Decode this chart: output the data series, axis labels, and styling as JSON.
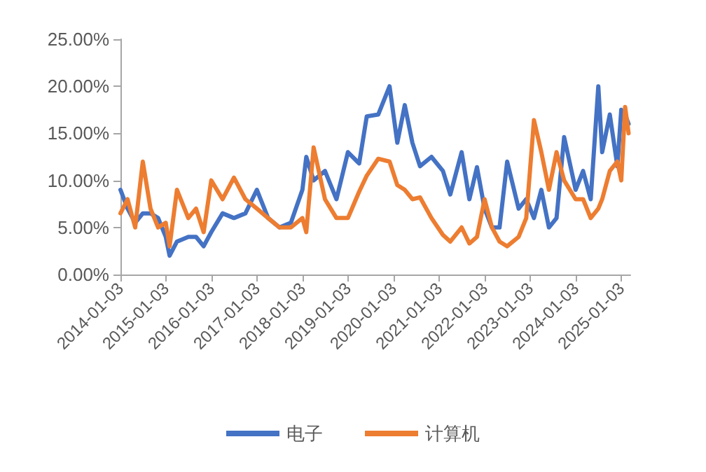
{
  "chart_data": {
    "type": "line",
    "x": [
      "2014-01-03",
      "2014-03",
      "2014-05",
      "2014-07",
      "2014-09",
      "2014-11",
      "2015-01",
      "2015-02",
      "2015-04",
      "2015-07",
      "2015-09",
      "2015-11",
      "2016-01",
      "2016-04",
      "2016-07",
      "2016-10",
      "2017-01",
      "2017-04",
      "2017-07",
      "2017-10",
      "2018-01",
      "2018-02",
      "2018-04",
      "2018-07",
      "2018-10",
      "2019-01",
      "2019-04",
      "2019-06",
      "2019-09",
      "2019-12",
      "2020-02",
      "2020-04",
      "2020-06",
      "2020-08",
      "2020-11",
      "2021-02",
      "2021-04",
      "2021-07",
      "2021-09",
      "2021-11",
      "2022-01",
      "2022-03",
      "2022-05",
      "2022-07",
      "2022-10",
      "2022-12",
      "2023-02",
      "2023-04",
      "2023-06",
      "2023-08",
      "2023-10",
      "2024-01",
      "2024-03",
      "2024-05",
      "2024-07",
      "2024-08",
      "2024-10",
      "2024-12",
      "2025-01",
      "2025-02",
      "2025-03"
    ],
    "series": [
      {
        "name": "电子",
        "color": "#4472c4",
        "values": [
          9,
          7,
          5.5,
          6.5,
          6.5,
          6,
          4,
          2,
          3.5,
          4,
          4,
          3,
          4.5,
          6.5,
          6,
          6.5,
          9,
          6,
          5,
          5.5,
          9,
          12.5,
          10,
          11,
          8,
          13,
          11.8,
          16.8,
          17,
          20,
          14,
          18,
          14,
          11.5,
          12.5,
          11,
          8.5,
          13,
          8,
          11.4,
          7,
          5,
          5,
          12,
          7,
          8,
          6,
          9,
          5,
          6,
          14.6,
          9,
          11,
          8,
          20,
          13,
          17,
          11.5,
          17.5,
          17,
          16
        ]
      },
      {
        "name": "计算机",
        "color": "#ed7d31",
        "values": [
          6.5,
          8,
          5,
          12,
          7,
          5,
          5.5,
          3,
          9,
          6,
          7,
          4.5,
          10,
          8,
          10.3,
          8,
          7,
          6,
          5,
          5,
          6,
          4.5,
          13.5,
          8,
          6,
          6,
          8.8,
          10.5,
          12.3,
          12,
          9.5,
          9,
          8,
          8.2,
          6,
          4.2,
          3.5,
          5,
          3.3,
          4,
          8,
          5,
          3.5,
          3,
          4,
          6,
          16.4,
          13,
          9,
          13,
          10,
          8,
          8,
          6,
          7,
          8,
          11,
          12,
          10,
          17.8,
          15
        ]
      }
    ],
    "xlim": [
      "2014-01-03",
      "2025-03-15"
    ],
    "xticks": [
      "2014-01-03",
      "2015-01-03",
      "2016-01-03",
      "2017-01-03",
      "2018-01-03",
      "2019-01-03",
      "2020-01-03",
      "2021-01-03",
      "2022-01-03",
      "2023-01-03",
      "2024-01-03",
      "2025-01-03"
    ],
    "ylim": [
      0,
      25
    ],
    "yticks": [
      {
        "value": 0,
        "label": "0.00%"
      },
      {
        "value": 5,
        "label": "5.00%"
      },
      {
        "value": 10,
        "label": "10.00%"
      },
      {
        "value": 15,
        "label": "15.00%"
      },
      {
        "value": 20,
        "label": "20.00%"
      },
      {
        "value": 25,
        "label": "25.00%"
      }
    ],
    "grid": false,
    "legend": "bottom",
    "marker": "none",
    "line_style": "solid"
  }
}
